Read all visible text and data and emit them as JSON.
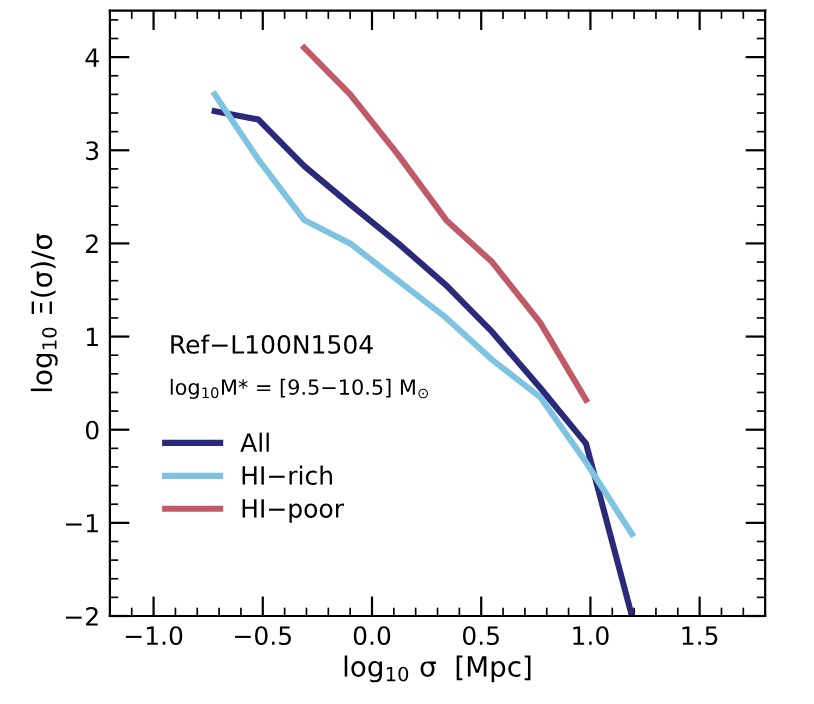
{
  "chart_data": {
    "type": "line",
    "xlabel": "log$_{10}$ σ  [Mpc]",
    "ylabel": "log$_{10}$ Ξ(σ)/σ",
    "annotations": [
      "Ref−L100N1504",
      "log$_{10}$M* = [9.5−10.5] M$_{⊙}$"
    ],
    "xlim": [
      -1.2,
      1.8
    ],
    "ylim": [
      -2,
      4.5
    ],
    "xticks": [
      {
        "value": -1.0,
        "label": "−1.0"
      },
      {
        "value": -0.5,
        "label": "−0.5"
      },
      {
        "value": 0,
        "label": "0.0"
      },
      0.5,
      {
        "value": 1,
        "label": "1.0"
      },
      1.5
    ],
    "yticks": [
      {
        "value": -2,
        "label": "−2"
      },
      {
        "value": -1,
        "label": "−1"
      },
      0,
      1,
      2,
      3,
      4
    ],
    "grid": false,
    "legend": "bottom left",
    "series": [
      {
        "name": "All",
        "color": "#2b2a7a",
        "x": [
          -0.72,
          -0.52,
          -0.31,
          -0.1,
          0.12,
          0.34,
          0.55,
          0.77,
          0.98,
          1.19
        ],
        "values": [
          3.42,
          3.33,
          2.83,
          2.42,
          2.0,
          1.55,
          1.05,
          0.45,
          -0.15,
          -2.0
        ]
      },
      {
        "name": "HI−rich",
        "color": "#7ec3e0",
        "x": [
          -0.72,
          -0.52,
          -0.31,
          -0.1,
          0.12,
          0.34,
          0.55,
          0.77,
          0.98,
          1.19
        ],
        "values": [
          3.6,
          2.9,
          2.25,
          2.0,
          1.6,
          1.2,
          0.75,
          0.35,
          -0.35,
          -1.12
        ]
      },
      {
        "name": "HI−poor",
        "color": "#c05a66",
        "x": [
          -0.31,
          -0.1,
          0.12,
          0.34,
          0.55,
          0.77,
          0.98
        ],
        "values": [
          4.1,
          3.6,
          2.95,
          2.25,
          1.8,
          1.15,
          0.32
        ]
      }
    ]
  }
}
